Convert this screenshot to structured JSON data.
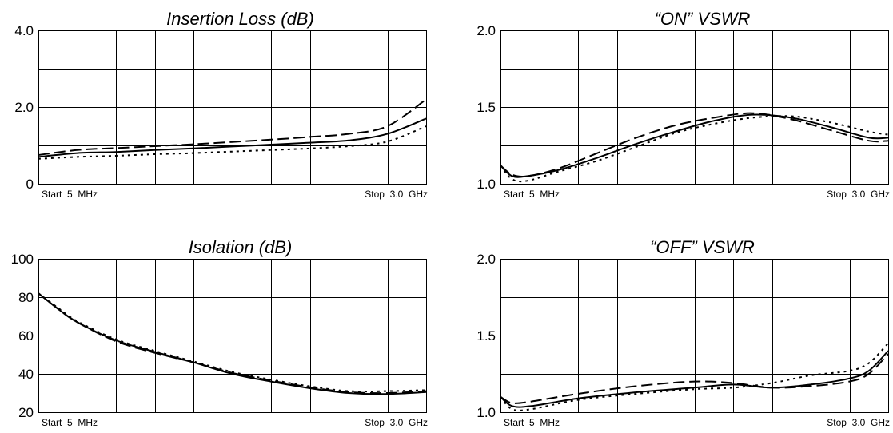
{
  "chart_data": [
    {
      "type": "line",
      "title": "Insertion Loss (dB)",
      "ylim": [
        0,
        4.0
      ],
      "yticks": [
        {
          "value": 0,
          "label": "0"
        },
        {
          "value": 2.0,
          "label": "2.0"
        },
        {
          "value": 4.0,
          "label": "4.0"
        }
      ],
      "grid": true,
      "x_start_label": "Start  5  MHz",
      "x_stop_label": "Stop  3.0  GHz",
      "x": [
        0,
        0.1,
        0.2,
        0.3,
        0.4,
        0.5,
        0.6,
        0.7,
        0.8,
        0.9,
        1.0
      ],
      "series": [
        {
          "style": "dashed",
          "values": [
            0.75,
            0.88,
            0.93,
            0.98,
            1.03,
            1.09,
            1.15,
            1.22,
            1.3,
            1.5,
            2.2
          ]
        },
        {
          "style": "solid",
          "values": [
            0.7,
            0.8,
            0.83,
            0.88,
            0.92,
            0.97,
            1.02,
            1.07,
            1.13,
            1.3,
            1.7
          ]
        },
        {
          "style": "dotted",
          "values": [
            0.65,
            0.7,
            0.73,
            0.77,
            0.8,
            0.84,
            0.88,
            0.92,
            0.98,
            1.1,
            1.5
          ]
        }
      ]
    },
    {
      "type": "line",
      "title": "“ON” VSWR",
      "ylim": [
        1.0,
        2.0
      ],
      "yticks": [
        {
          "value": 1.0,
          "label": "1.0"
        },
        {
          "value": 1.5,
          "label": "1.5"
        },
        {
          "value": 2.0,
          "label": "2.0"
        }
      ],
      "grid": true,
      "x_start_label": "Start  5  MHz",
      "x_stop_label": "Stop  3.0  GHz",
      "x": [
        0,
        0.03,
        0.07,
        0.15,
        0.25,
        0.35,
        0.45,
        0.55,
        0.65,
        0.75,
        0.85,
        0.95,
        1.0
      ],
      "series": [
        {
          "style": "dashed",
          "values": [
            1.12,
            1.06,
            1.05,
            1.1,
            1.2,
            1.3,
            1.38,
            1.43,
            1.46,
            1.42,
            1.35,
            1.28,
            1.28
          ]
        },
        {
          "style": "solid",
          "values": [
            1.12,
            1.05,
            1.05,
            1.09,
            1.17,
            1.26,
            1.34,
            1.41,
            1.45,
            1.43,
            1.37,
            1.3,
            1.3
          ]
        },
        {
          "style": "dotted",
          "values": [
            1.12,
            1.03,
            1.02,
            1.08,
            1.15,
            1.24,
            1.33,
            1.39,
            1.43,
            1.44,
            1.4,
            1.34,
            1.32
          ]
        }
      ]
    },
    {
      "type": "line",
      "title": "Isolation (dB)",
      "ylim": [
        20,
        100
      ],
      "yticks": [
        {
          "value": 20,
          "label": "20"
        },
        {
          "value": 40,
          "label": "40"
        },
        {
          "value": 60,
          "label": "60"
        },
        {
          "value": 80,
          "label": "80"
        },
        {
          "value": 100,
          "label": "100"
        }
      ],
      "grid": true,
      "x_start_label": "Start  5  MHz",
      "x_stop_label": "Stop  3.0  GHz",
      "x": [
        0,
        0.05,
        0.1,
        0.2,
        0.3,
        0.4,
        0.5,
        0.6,
        0.7,
        0.8,
        0.9,
        1.0
      ],
      "series": [
        {
          "style": "dashed",
          "values": [
            82,
            74,
            67,
            57,
            51,
            46,
            40.5,
            36.5,
            33,
            30.5,
            30,
            31
          ]
        },
        {
          "style": "solid",
          "values": [
            82,
            74,
            67,
            57.5,
            51.5,
            46,
            40,
            36,
            32.5,
            30,
            29.5,
            30.5
          ]
        },
        {
          "style": "dotted",
          "values": [
            82,
            74.5,
            67.5,
            58,
            52,
            46.5,
            41,
            37,
            33.5,
            31,
            31,
            31.5
          ]
        }
      ]
    },
    {
      "type": "line",
      "title": "“OFF” VSWR",
      "ylim": [
        1.0,
        2.0
      ],
      "yticks": [
        {
          "value": 1.0,
          "label": "1.0"
        },
        {
          "value": 1.5,
          "label": "1.5"
        },
        {
          "value": 2.0,
          "label": "2.0"
        }
      ],
      "grid": true,
      "x_start_label": "Start  5  MHz",
      "x_stop_label": "Stop  3.0  GHz",
      "x": [
        0,
        0.03,
        0.08,
        0.2,
        0.35,
        0.5,
        0.6,
        0.7,
        0.8,
        0.9,
        0.95,
        1.0
      ],
      "series": [
        {
          "style": "dashed",
          "values": [
            1.1,
            1.06,
            1.07,
            1.12,
            1.17,
            1.2,
            1.19,
            1.16,
            1.17,
            1.2,
            1.25,
            1.38
          ]
        },
        {
          "style": "solid",
          "values": [
            1.1,
            1.04,
            1.04,
            1.09,
            1.13,
            1.16,
            1.18,
            1.16,
            1.18,
            1.22,
            1.27,
            1.4
          ]
        },
        {
          "style": "dotted",
          "values": [
            1.1,
            1.02,
            1.02,
            1.08,
            1.12,
            1.15,
            1.16,
            1.19,
            1.24,
            1.27,
            1.32,
            1.45
          ]
        }
      ]
    }
  ]
}
